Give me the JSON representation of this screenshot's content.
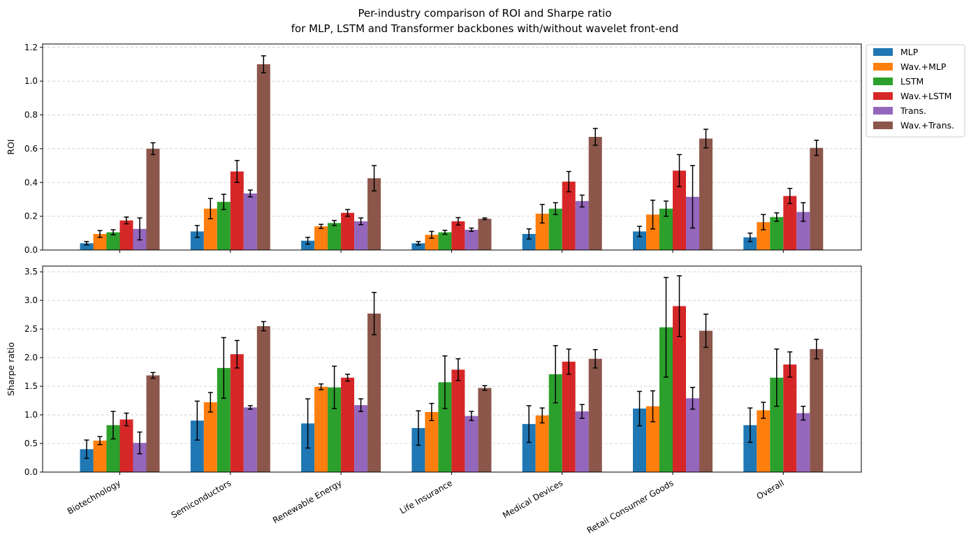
{
  "figure": {
    "title_line1": "Per-industry comparison of ROI and Sharpe ratio",
    "title_line2": "for MLP, LSTM and Transformer backbones with/without wavelet front-end"
  },
  "legend": {
    "placement": "outside top-right",
    "entries": [
      "MLP",
      "Wav.+MLP",
      "LSTM",
      "Wav.+LSTM",
      "Trans.",
      "Wav.+Trans."
    ]
  },
  "colors": {
    "MLP": "#1f77b4",
    "Wav.+MLP": "#ff7f0e",
    "LSTM": "#2ca02c",
    "Wav.+LSTM": "#d62728",
    "Trans.": "#9467bd",
    "Wav.+Trans.": "#8c564b",
    "grid": "#cccccc",
    "errorbar": "#000000"
  },
  "chart_data": [
    {
      "type": "bar",
      "panel": "top",
      "ylabel": "ROI",
      "ylim": [
        0,
        1.22
      ],
      "yticks": [
        "0.0",
        "0.2",
        "0.4",
        "0.6",
        "0.8",
        "1.0",
        "1.2"
      ],
      "grid": "y, dashed",
      "categories": [
        "Biotechnology",
        "Semiconductors",
        "Renewable Energy",
        "Life Insurance",
        "Medical Devices",
        "Retail Consumer Goods",
        "Overall"
      ],
      "series": [
        {
          "name": "MLP",
          "values": [
            0.04,
            0.11,
            0.055,
            0.04,
            0.095,
            0.11,
            0.075
          ],
          "errors": [
            0.01,
            0.035,
            0.02,
            0.01,
            0.03,
            0.03,
            0.025
          ]
        },
        {
          "name": "Wav.+MLP",
          "values": [
            0.095,
            0.245,
            0.14,
            0.09,
            0.215,
            0.21,
            0.165
          ],
          "errors": [
            0.02,
            0.06,
            0.012,
            0.02,
            0.055,
            0.085,
            0.045
          ]
        },
        {
          "name": "LSTM",
          "values": [
            0.105,
            0.285,
            0.16,
            0.105,
            0.245,
            0.245,
            0.195
          ],
          "errors": [
            0.015,
            0.045,
            0.015,
            0.012,
            0.035,
            0.045,
            0.025
          ]
        },
        {
          "name": "Wav.+LSTM",
          "values": [
            0.175,
            0.465,
            0.22,
            0.17,
            0.405,
            0.47,
            0.32
          ],
          "errors": [
            0.02,
            0.065,
            0.02,
            0.022,
            0.06,
            0.095,
            0.045
          ]
        },
        {
          "name": "Trans.",
          "values": [
            0.125,
            0.335,
            0.17,
            0.12,
            0.29,
            0.315,
            0.225
          ],
          "errors": [
            0.065,
            0.02,
            0.02,
            0.01,
            0.035,
            0.185,
            0.055
          ]
        },
        {
          "name": "Wav.+Trans.",
          "values": [
            0.6,
            1.1,
            0.425,
            0.185,
            0.67,
            0.66,
            0.605
          ],
          "errors": [
            0.035,
            0.05,
            0.075,
            0.005,
            0.05,
            0.055,
            0.045
          ]
        }
      ]
    },
    {
      "type": "bar",
      "panel": "bottom",
      "ylabel": "Sharpe ratio",
      "ylim": [
        0,
        3.6
      ],
      "yticks": [
        "0.0",
        "0.5",
        "1.0",
        "1.5",
        "2.0",
        "2.5",
        "3.0",
        "3.5"
      ],
      "grid": "y, dashed",
      "categories": [
        "Biotechnology",
        "Semiconductors",
        "Renewable Energy",
        "Life Insurance",
        "Medical Devices",
        "Retail Consumer Goods",
        "Overall"
      ],
      "series": [
        {
          "name": "MLP",
          "values": [
            0.4,
            0.9,
            0.85,
            0.77,
            0.84,
            1.11,
            0.82
          ],
          "errors": [
            0.16,
            0.34,
            0.43,
            0.3,
            0.32,
            0.3,
            0.3
          ]
        },
        {
          "name": "Wav.+MLP",
          "values": [
            0.55,
            1.22,
            1.49,
            1.05,
            0.99,
            1.15,
            1.08
          ],
          "errors": [
            0.07,
            0.17,
            0.05,
            0.15,
            0.13,
            0.27,
            0.14
          ]
        },
        {
          "name": "LSTM",
          "values": [
            0.82,
            1.82,
            1.48,
            1.57,
            1.71,
            2.53,
            1.65
          ],
          "errors": [
            0.24,
            0.53,
            0.37,
            0.46,
            0.5,
            0.87,
            0.5
          ]
        },
        {
          "name": "Wav.+LSTM",
          "values": [
            0.92,
            2.06,
            1.65,
            1.79,
            1.93,
            2.9,
            1.88
          ],
          "errors": [
            0.11,
            0.24,
            0.06,
            0.19,
            0.22,
            0.53,
            0.22
          ]
        },
        {
          "name": "Trans.",
          "values": [
            0.51,
            1.13,
            1.17,
            0.98,
            1.06,
            1.29,
            1.03
          ],
          "errors": [
            0.19,
            0.03,
            0.11,
            0.08,
            0.12,
            0.19,
            0.12
          ]
        },
        {
          "name": "Wav.+Trans.",
          "values": [
            1.69,
            2.55,
            2.77,
            1.47,
            1.98,
            2.47,
            2.15
          ],
          "errors": [
            0.05,
            0.08,
            0.37,
            0.04,
            0.16,
            0.29,
            0.17
          ]
        }
      ]
    }
  ]
}
